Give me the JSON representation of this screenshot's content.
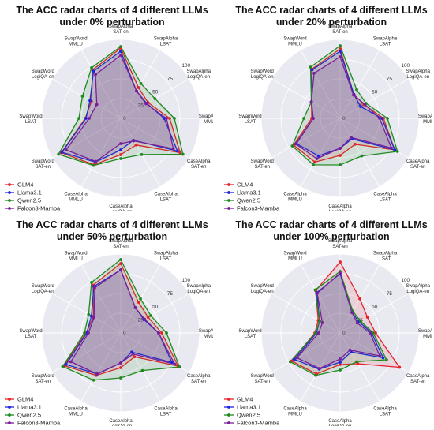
{
  "chart_data": [
    {
      "type": "radar",
      "title_lines": [
        "The ACC radar charts of 4 different LLMs",
        "under 0% perturbation"
      ],
      "axes": [
        [
          "SwapAlpha",
          "SAT-en"
        ],
        [
          "SwapAlpha",
          "LSAT"
        ],
        [
          "SwapAlpha",
          "LogiQA-en"
        ],
        [
          "SwapAlpha",
          "MMLU"
        ],
        [
          "CaseAlpha",
          "SAT-en"
        ],
        [
          "CaseAlpha",
          "LSAT"
        ],
        [
          "CaseAlpha",
          "LogiQA-en"
        ],
        [
          "CaseAlpha",
          "MMLU"
        ],
        [
          "SwapWord",
          "SAT-en"
        ],
        [
          "SwapWord",
          "LSAT"
        ],
        [
          "SwapWord",
          "LogiQA-en"
        ],
        [
          "SwapWord",
          "MMLU"
        ]
      ],
      "rticks": [
        0,
        25,
        50,
        75,
        100
      ],
      "rlim": [
        0,
        100
      ],
      "series": [
        {
          "name": "GLM4",
          "color": "#e8202a",
          "values": [
            89,
            45,
            40,
            62,
            87,
            39,
            46,
            68,
            87,
            45,
            43,
            71
          ]
        },
        {
          "name": "Llama3.1",
          "color": "#1f22e0",
          "values": [
            85,
            40,
            38,
            55,
            83,
            32,
            40,
            64,
            86,
            44,
            45,
            69
          ]
        },
        {
          "name": "Qwen2.5",
          "color": "#1e8a1e",
          "values": [
            91,
            51,
            50,
            68,
            91,
            53,
            51,
            69,
            91,
            53,
            56,
            74
          ]
        },
        {
          "name": "Falcon3-Mamba",
          "color": "#7a1f9a",
          "values": [
            80,
            40,
            37,
            58,
            77,
            33,
            32,
            63,
            80,
            40,
            35,
            64
          ]
        }
      ]
    },
    {
      "type": "radar",
      "title_lines": [
        "The ACC radar charts of 4 different LLMs",
        "under 20% perturbation"
      ],
      "axes": [
        [
          "SwapAlpha",
          "SAT-en"
        ],
        [
          "SwapAlpha",
          "LSAT"
        ],
        [
          "SwapAlpha",
          "LogiQA-en"
        ],
        [
          "SwapAlpha",
          "MMLU"
        ],
        [
          "CaseAlpha",
          "SAT-en"
        ],
        [
          "CaseAlpha",
          "LSAT"
        ],
        [
          "CaseAlpha",
          "LogiQA-en"
        ],
        [
          "CaseAlpha",
          "MMLU"
        ],
        [
          "SwapWord",
          "SAT-en"
        ],
        [
          "SwapWord",
          "LSAT"
        ],
        [
          "SwapWord",
          "LogiQA-en"
        ],
        [
          "SwapWord",
          "MMLU"
        ]
      ],
      "rticks": [
        0,
        25,
        50,
        75,
        100
      ],
      "rlim": [
        0,
        100
      ],
      "series": [
        {
          "name": "GLM4",
          "color": "#e8202a",
          "values": [
            88,
            35,
            35,
            55,
            80,
            38,
            47,
            64,
            68,
            36,
            42,
            72
          ]
        },
        {
          "name": "Llama3.1",
          "color": "#1f22e0",
          "values": [
            85,
            35,
            30,
            53,
            80,
            30,
            38,
            55,
            64,
            34,
            42,
            71
          ]
        },
        {
          "name": "Qwen2.5",
          "color": "#1e8a1e",
          "values": [
            92,
            42,
            38,
            60,
            84,
            55,
            59,
            68,
            70,
            46,
            42,
            75
          ]
        },
        {
          "name": "Falcon3-Mamba",
          "color": "#7a1f9a",
          "values": [
            78,
            34,
            36,
            50,
            75,
            28,
            38,
            59,
            65,
            34,
            42,
            66
          ]
        }
      ]
    },
    {
      "type": "radar",
      "title_lines": [
        "The ACC radar charts of 4 different LLMs",
        "under 50% perturbation"
      ],
      "axes": [
        [
          "SwapAlpha",
          "SAT-en"
        ],
        [
          "SwapAlpha",
          "LSAT"
        ],
        [
          "SwapAlpha",
          "LogiQA-en"
        ],
        [
          "SwapAlpha",
          "MMLU"
        ],
        [
          "CaseAlpha",
          "SAT-en"
        ],
        [
          "CaseAlpha",
          "LSAT"
        ],
        [
          "CaseAlpha",
          "LogiQA-en"
        ],
        [
          "CaseAlpha",
          "MMLU"
        ],
        [
          "SwapWord",
          "SAT-en"
        ],
        [
          "SwapWord",
          "LSAT"
        ],
        [
          "SwapWord",
          "LogiQA-en"
        ],
        [
          "SwapWord",
          "MMLU"
        ]
      ],
      "rticks": [
        0,
        25,
        50,
        75,
        100
      ],
      "rlim": [
        0,
        100
      ],
      "series": [
        {
          "name": "GLM4",
          "color": "#e8202a",
          "values": [
            88,
            45,
            40,
            52,
            84,
            35,
            44,
            62,
            83,
            44,
            40,
            70
          ]
        },
        {
          "name": "Llama3.1",
          "color": "#1f22e0",
          "values": [
            80,
            37,
            34,
            48,
            75,
            28,
            38,
            60,
            80,
            43,
            43,
            68
          ]
        },
        {
          "name": "Qwen2.5",
          "color": "#1e8a1e",
          "values": [
            93,
            50,
            44,
            58,
            86,
            55,
            57,
            69,
            85,
            46,
            47,
            74
          ]
        },
        {
          "name": "Falcon3-Mamba",
          "color": "#7a1f9a",
          "values": [
            80,
            37,
            35,
            48,
            79,
            31,
            38,
            60,
            73,
            41,
            39,
            66
          ]
        }
      ]
    },
    {
      "type": "radar",
      "title_lines": [
        "The ACC radar charts of 4 different LLMs",
        "under 100% perturbation"
      ],
      "axes": [
        [
          "SwapAlpha",
          "SAT-en"
        ],
        [
          "SwapAlpha",
          "LSAT"
        ],
        [
          "SwapAlpha",
          "LogiQA-en"
        ],
        [
          "SwapAlpha",
          "MMLU"
        ],
        [
          "CaseAlpha",
          "SAT-en"
        ],
        [
          "CaseAlpha",
          "LSAT"
        ],
        [
          "CaseAlpha",
          "LogiQA-en"
        ],
        [
          "CaseAlpha",
          "MMLU"
        ],
        [
          "SwapWord",
          "SAT-en"
        ],
        [
          "SwapWord",
          "LSAT"
        ],
        [
          "SwapWord",
          "LogiQA-en"
        ],
        [
          "SwapWord",
          "MMLU"
        ]
      ],
      "rticks": [
        0,
        25,
        50,
        75,
        100
      ],
      "rlim": [
        0,
        100
      ],
      "series": [
        {
          "name": "GLM4",
          "color": "#e8202a",
          "values": [
            90,
            50,
            40,
            45,
            87,
            45,
            40,
            60,
            71,
            32,
            32,
            62
          ]
        },
        {
          "name": "Llama3.1",
          "color": "#1f22e0",
          "values": [
            75,
            30,
            28,
            40,
            63,
            28,
            37,
            53,
            67,
            30,
            30,
            59
          ]
        },
        {
          "name": "Qwen2.5",
          "color": "#1e8a1e",
          "values": [
            78,
            32,
            30,
            42,
            68,
            42,
            47,
            62,
            73,
            31,
            30,
            63
          ]
        },
        {
          "name": "Falcon3-Mamba",
          "color": "#7a1f9a",
          "values": [
            76,
            30,
            25,
            38,
            58,
            25,
            33,
            52,
            63,
            27,
            26,
            58
          ]
        }
      ]
    }
  ]
}
